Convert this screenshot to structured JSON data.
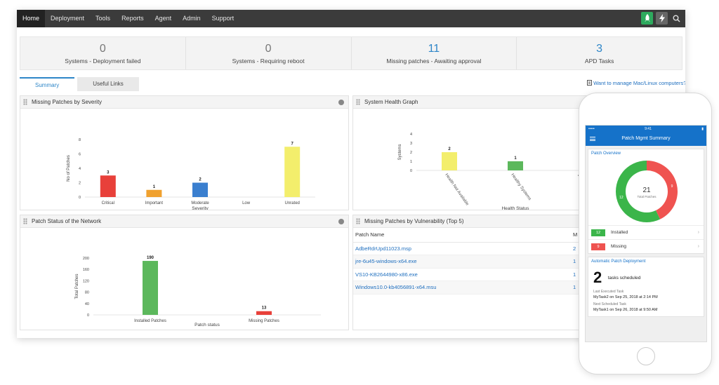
{
  "nav": {
    "items": [
      "Home",
      "Deployment",
      "Tools",
      "Reports",
      "Agent",
      "Admin",
      "Support"
    ],
    "active": "Home"
  },
  "stats": [
    {
      "value": "0",
      "label": "Systems - Deployment failed",
      "highlight": false
    },
    {
      "value": "0",
      "label": "Systems - Requiring reboot",
      "highlight": false
    },
    {
      "value": "11",
      "label": "Missing patches - Awaiting approval",
      "highlight": true
    },
    {
      "value": "3",
      "label": "APD Tasks",
      "highlight": true
    }
  ],
  "tabs": {
    "summary": "Summary",
    "useful_links": "Useful Links"
  },
  "mac_link": "Want to manage Mac/Linux computers?",
  "panels": {
    "severity_title": "Missing Patches by Severity",
    "health_title": "System Health Graph",
    "patch_status_title": "Patch Status of the Network",
    "vuln_title": "Missing Patches by Vulnerability (Top 5)"
  },
  "chart_data": [
    {
      "type": "bar",
      "title": "Missing Patches by Severity",
      "xlabel": "Severity",
      "ylabel": "No of Patches",
      "ylim": [
        0,
        8
      ],
      "yticks": [
        0,
        2,
        4,
        6,
        8
      ],
      "categories": [
        "Critical",
        "Important",
        "Moderate",
        "Low",
        "Unrated"
      ],
      "values": [
        3,
        1,
        2,
        0,
        7
      ],
      "colors": [
        "#e8403a",
        "#f0a12f",
        "#3a7fcf",
        "#cccccc",
        "#f3ee6c"
      ],
      "grid": false
    },
    {
      "type": "bar",
      "title": "System Health Graph",
      "xlabel": "Health Status",
      "ylabel": "Systems",
      "ylim": [
        0,
        4
      ],
      "yticks": [
        0,
        1,
        2,
        3,
        4
      ],
      "categories": [
        "Health Not Available",
        "Healthy Systems",
        "Vulnerable Systems"
      ],
      "values": [
        2,
        1,
        0
      ],
      "colors": [
        "#f3ee6c",
        "#5cb85c",
        "#e8403a"
      ],
      "grid": false
    },
    {
      "type": "bar",
      "title": "Patch Status of the Network",
      "xlabel": "Patch status",
      "ylabel": "Total Patches",
      "ylim": [
        0,
        200
      ],
      "yticks": [
        0,
        40,
        80,
        120,
        160,
        200
      ],
      "categories": [
        "Installed Patches",
        "Missing Patches"
      ],
      "values": [
        190,
        13
      ],
      "colors": [
        "#5cb85c",
        "#e8403a"
      ],
      "grid": false
    }
  ],
  "vuln_table": {
    "headers": [
      "Patch Name",
      "M"
    ],
    "rows": [
      {
        "name": "AdbeRdrUpd11023.msp",
        "count": "2"
      },
      {
        "name": "jre-6u45-windows-x64.exe",
        "count": "1"
      },
      {
        "name": "VS10-KB2644980-x86.exe",
        "count": "1"
      },
      {
        "name": "Windows10.0-kb4056891-x64.msu",
        "count": "1"
      }
    ]
  },
  "mobile": {
    "time": "9:41",
    "title": "Patch Mgmt Summary",
    "overview_title": "Patch Overview",
    "total": "21",
    "total_label": "Total Patches",
    "installed": {
      "value": 12,
      "label": "Installed",
      "color": "#3bb54a"
    },
    "missing": {
      "value": 9,
      "label": "Missing",
      "color": "#ef5350"
    },
    "apd_title": "Automatic Patch Deployment",
    "tasks_count": "2",
    "tasks_label": "tasks scheduled",
    "last_label": "Last Executed Task",
    "last_value": "MyTask2 on Sep 25, 2018 at 2:14 PM",
    "next_label": "Next Scheduled Task",
    "next_value": "MyTask1 on Sep 26, 2018 at 9:50 AM"
  }
}
